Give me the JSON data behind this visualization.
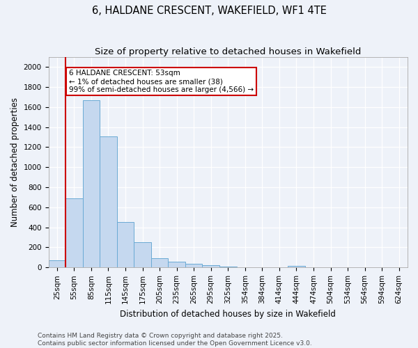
{
  "title": "6, HALDANE CRESCENT, WAKEFIELD, WF1 4TE",
  "subtitle": "Size of property relative to detached houses in Wakefield",
  "xlabel": "Distribution of detached houses by size in Wakefield",
  "ylabel": "Number of detached properties",
  "categories": [
    "25sqm",
    "55sqm",
    "85sqm",
    "115sqm",
    "145sqm",
    "175sqm",
    "205sqm",
    "235sqm",
    "265sqm",
    "295sqm",
    "325sqm",
    "354sqm",
    "384sqm",
    "414sqm",
    "444sqm",
    "474sqm",
    "504sqm",
    "534sqm",
    "564sqm",
    "594sqm",
    "624sqm"
  ],
  "values": [
    70,
    690,
    1670,
    1310,
    450,
    255,
    95,
    55,
    35,
    20,
    10,
    0,
    0,
    0,
    15,
    0,
    0,
    0,
    0,
    0,
    0
  ],
  "bar_color": "#c5d8ef",
  "bar_edge_color": "#6aaad4",
  "annotation_line1": "6 HALDANE CRESCENT: 53sqm",
  "annotation_line2": "← 1% of detached houses are smaller (38)",
  "annotation_line3": "99% of semi-detached houses are larger (4,566) →",
  "ylim": [
    0,
    2100
  ],
  "yticks": [
    0,
    200,
    400,
    600,
    800,
    1000,
    1200,
    1400,
    1600,
    1800,
    2000
  ],
  "footer_line1": "Contains HM Land Registry data © Crown copyright and database right 2025.",
  "footer_line2": "Contains public sector information licensed under the Open Government Licence v3.0.",
  "background_color": "#eef2f9",
  "grid_color": "#ffffff",
  "title_fontsize": 10.5,
  "subtitle_fontsize": 9.5,
  "axis_label_fontsize": 8.5,
  "tick_fontsize": 7.5,
  "annotation_fontsize": 7.5,
  "footer_fontsize": 6.5
}
